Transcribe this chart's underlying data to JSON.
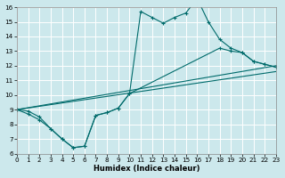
{
  "xlabel": "Humidex (Indice chaleur)",
  "xlim": [
    0,
    23
  ],
  "ylim": [
    6,
    16
  ],
  "xticks": [
    0,
    1,
    2,
    3,
    4,
    5,
    6,
    7,
    8,
    9,
    10,
    11,
    12,
    13,
    14,
    15,
    16,
    17,
    18,
    19,
    20,
    21,
    22,
    23
  ],
  "yticks": [
    6,
    7,
    8,
    9,
    10,
    11,
    12,
    13,
    14,
    15,
    16
  ],
  "bg_color": "#cce8ec",
  "line_color": "#006b6b",
  "curve1_x": [
    0,
    1,
    2,
    3,
    4,
    5,
    6,
    7,
    8,
    9,
    10,
    11,
    12,
    13,
    14,
    15,
    16,
    17,
    18,
    19,
    20,
    21,
    22,
    23
  ],
  "curve1_y": [
    9.0,
    8.9,
    8.5,
    7.7,
    7.0,
    6.4,
    6.5,
    8.6,
    8.8,
    9.1,
    10.1,
    15.7,
    15.3,
    14.9,
    15.3,
    15.6,
    16.6,
    15.0,
    13.8,
    13.2,
    12.9,
    12.3,
    12.1,
    11.9
  ],
  "curve2_x": [
    0,
    1,
    2,
    3,
    4,
    5,
    6,
    7,
    8,
    9,
    10,
    18,
    19,
    20,
    21,
    22,
    23
  ],
  "curve2_y": [
    9.0,
    8.7,
    8.3,
    7.7,
    7.0,
    6.4,
    6.5,
    8.6,
    8.8,
    9.1,
    10.1,
    13.2,
    13.0,
    12.9,
    12.3,
    12.1,
    11.9
  ],
  "line3_x": [
    0,
    23
  ],
  "line3_y": [
    9.0,
    12.0
  ],
  "line4_x": [
    0,
    23
  ],
  "line4_y": [
    9.0,
    11.6
  ]
}
